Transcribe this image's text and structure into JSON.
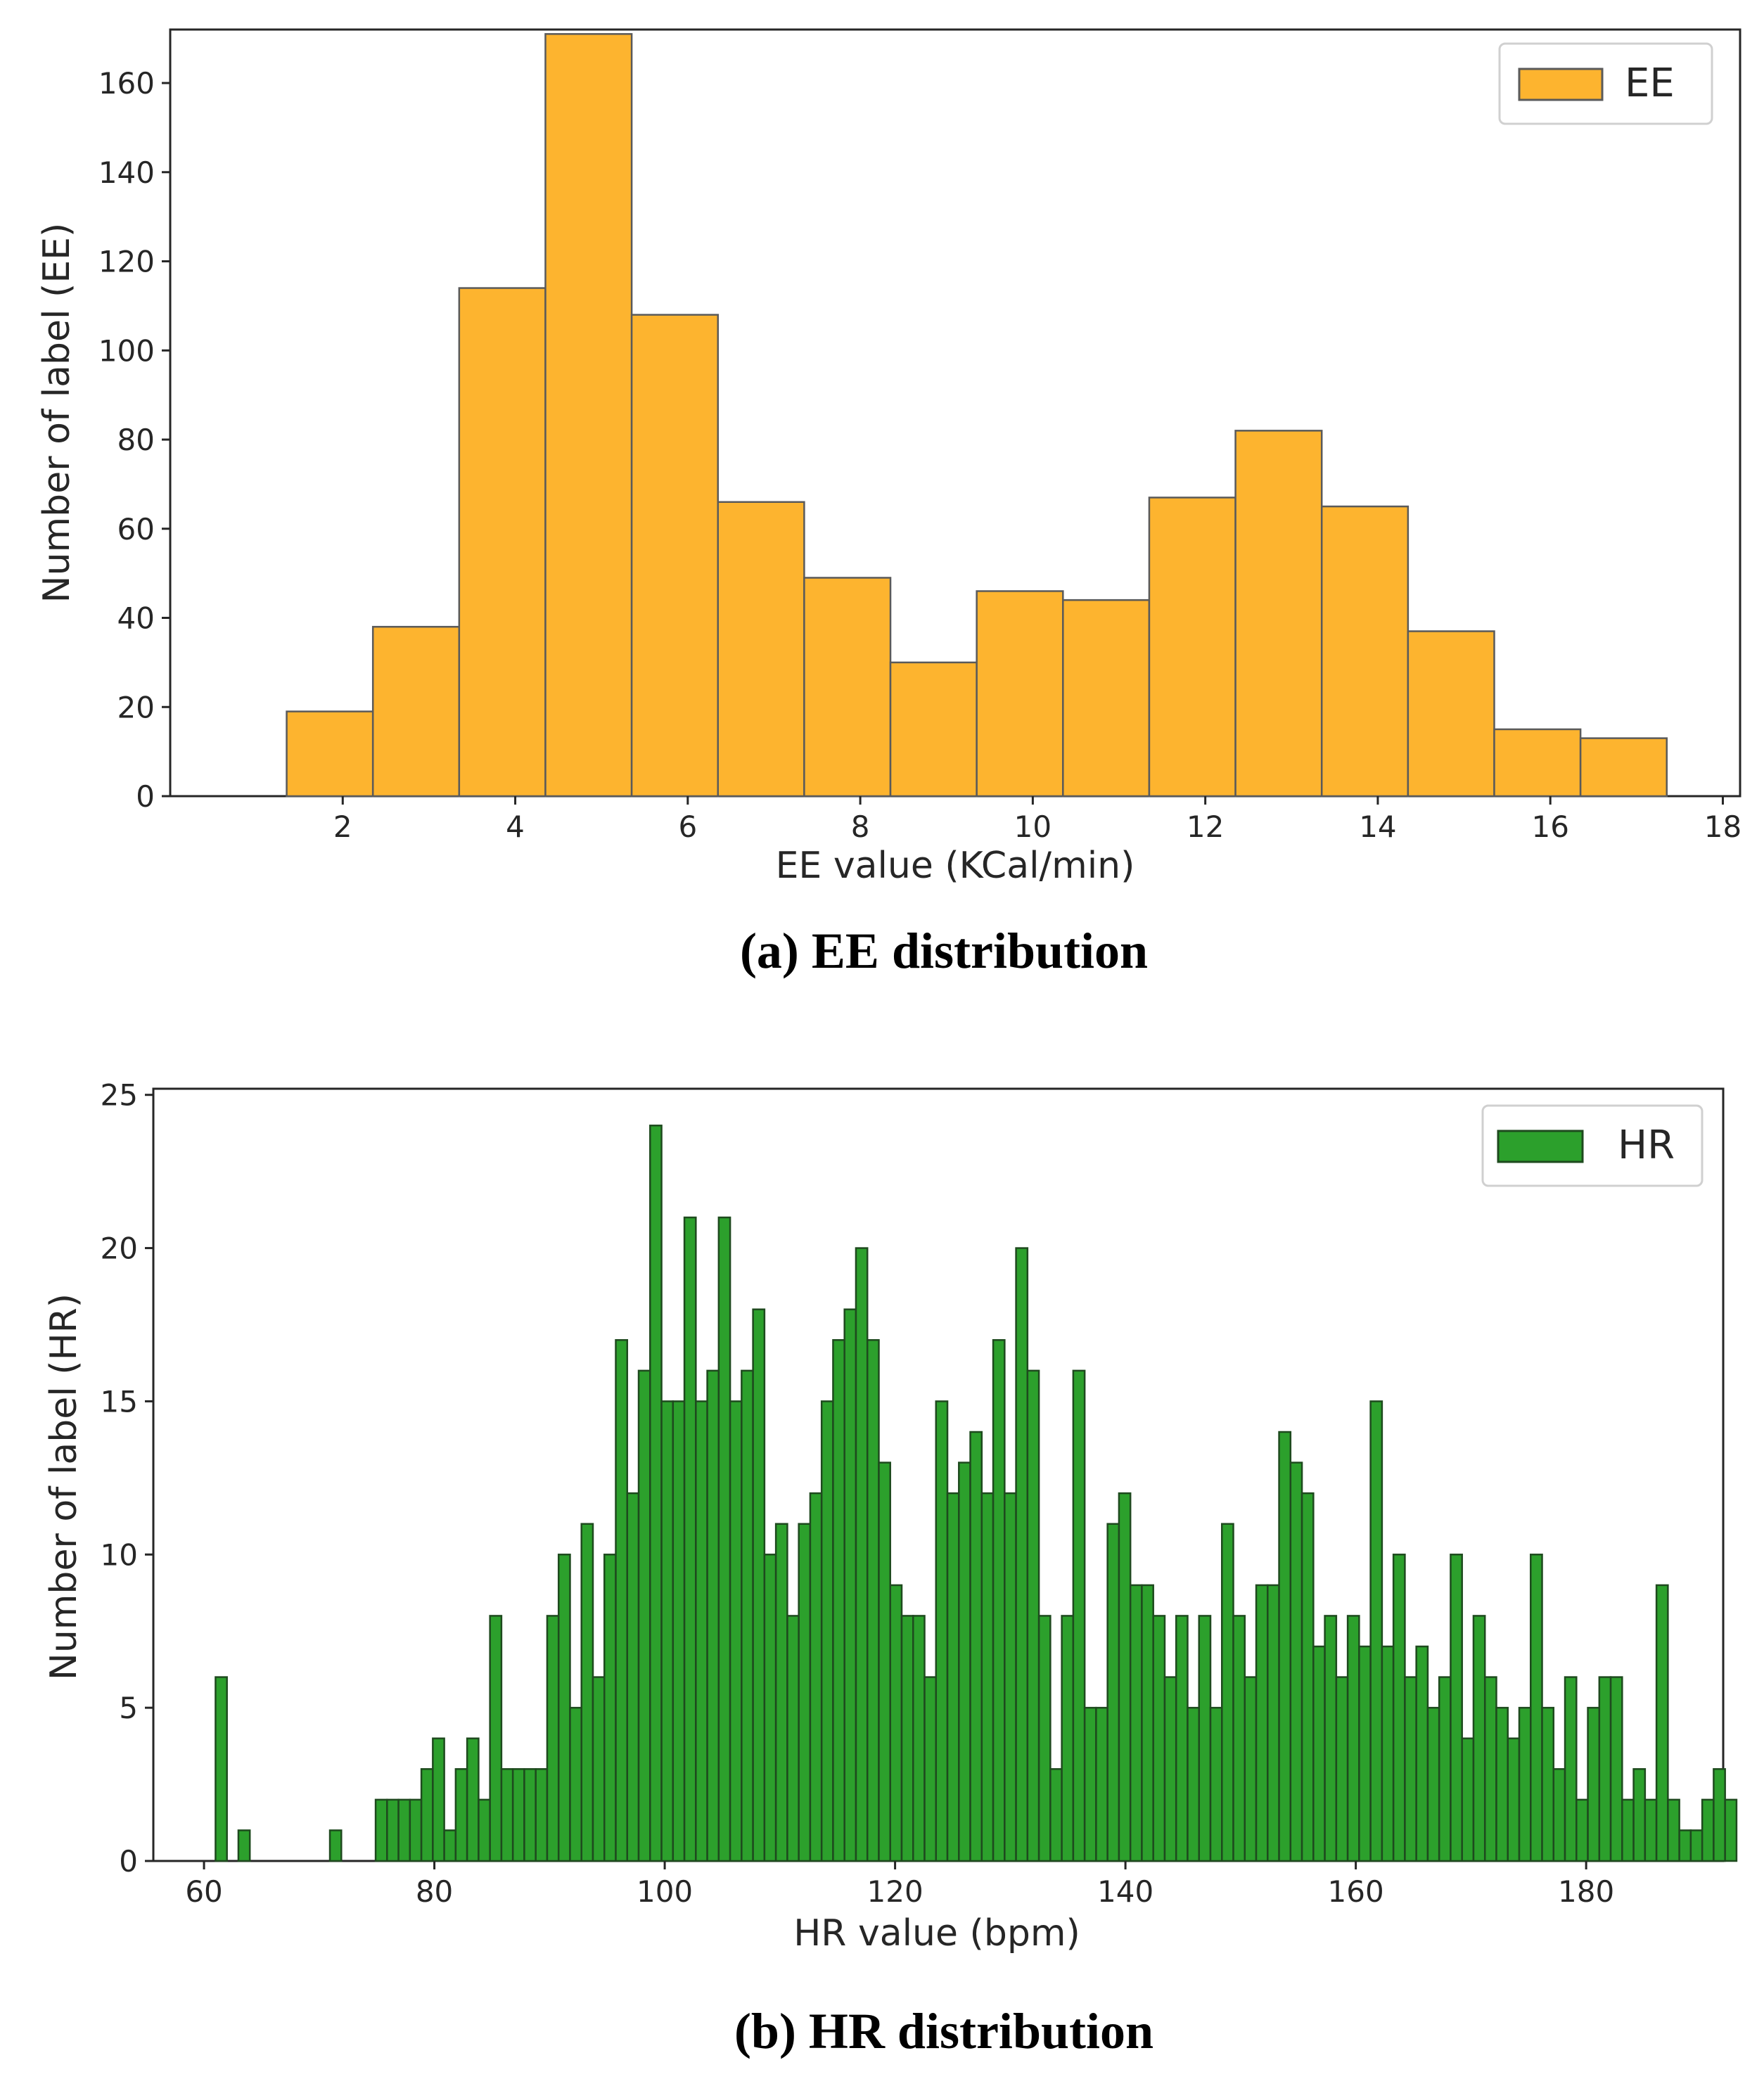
{
  "chart_data": [
    {
      "type": "bar",
      "subtype": "histogram",
      "caption": "(a) EE distribution",
      "xlabel": "EE value (KCal/min)",
      "ylabel": "Number of label (EE)",
      "legend": {
        "label": "EE",
        "position": "top-right"
      },
      "color": "#FDB42F",
      "edge_color": "#5a5a5a",
      "xlim": [
        0,
        18.2
      ],
      "ylim": [
        0,
        172
      ],
      "xticks": [
        2,
        4,
        6,
        8,
        10,
        12,
        14,
        16,
        18
      ],
      "yticks": [
        0,
        20,
        40,
        60,
        80,
        100,
        120,
        140,
        160
      ],
      "bin_start": 1.35,
      "bin_width": 1.0,
      "values": [
        19,
        38,
        114,
        171,
        108,
        66,
        49,
        30,
        46,
        44,
        67,
        82,
        65,
        37,
        15,
        13
      ]
    },
    {
      "type": "bar",
      "subtype": "histogram",
      "caption": "(b) HR distribution",
      "xlabel": "HR value (bpm)",
      "ylabel": "Number of label (HR)",
      "legend": {
        "label": "HR",
        "position": "top-right"
      },
      "color": "#2CA02C",
      "edge_color": "#1e4a1e",
      "xlim": [
        55.6,
        191.9
      ],
      "ylim": [
        0,
        25.2
      ],
      "xticks": [
        60,
        80,
        100,
        120,
        140,
        160,
        180
      ],
      "yticks": [
        0,
        5,
        10,
        15,
        20,
        25
      ],
      "bin_start": 61,
      "bin_width": 0.9929,
      "values": [
        6,
        0,
        1,
        0,
        0,
        0,
        0,
        0,
        0,
        0,
        1,
        0,
        0,
        0,
        2,
        2,
        2,
        2,
        3,
        4,
        1,
        3,
        4,
        2,
        8,
        3,
        3,
        3,
        3,
        8,
        10,
        5,
        11,
        6,
        10,
        17,
        12,
        16,
        24,
        15,
        15,
        21,
        15,
        16,
        21,
        15,
        16,
        18,
        10,
        11,
        8,
        11,
        12,
        15,
        17,
        18,
        20,
        17,
        13,
        9,
        8,
        8,
        6,
        15,
        12,
        13,
        14,
        12,
        17,
        12,
        20,
        16,
        8,
        3,
        8,
        16,
        5,
        5,
        11,
        12,
        9,
        9,
        8,
        6,
        8,
        5,
        8,
        5,
        11,
        8,
        6,
        9,
        9,
        14,
        13,
        12,
        7,
        8,
        6,
        8,
        7,
        15,
        7,
        10,
        6,
        7,
        5,
        6,
        10,
        4,
        8,
        6,
        5,
        4,
        5,
        10,
        5,
        3,
        6,
        2,
        5,
        6,
        6,
        2,
        3,
        2,
        9,
        2,
        1,
        1,
        2,
        3,
        2
      ]
    }
  ]
}
